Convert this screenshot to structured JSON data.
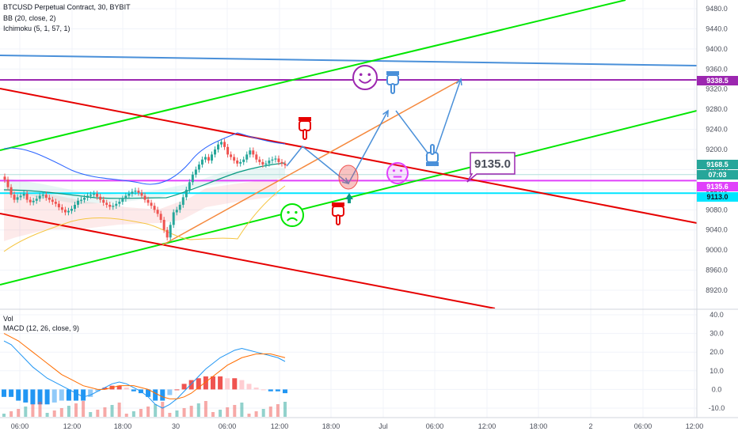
{
  "header": {
    "symbol": "BTCUSD Perpetual Contract, 30, BYBIT",
    "indicator_bb": "BB (20, close, 2)",
    "indicator_ichimoku": "Ichimoku (5, 1, 57, 1)",
    "indicator_vol": "Vol",
    "indicator_macd": "MACD (12, 26, close, 9)"
  },
  "price_axis": {
    "ticks": [
      "9480.0",
      "9440.0",
      "9400.0",
      "9360.0",
      "9320.0",
      "9280.0",
      "9240.0",
      "9200.0",
      "9160.0",
      "9120.0",
      "9080.0",
      "9040.0",
      "9000.0",
      "8960.0",
      "8920.0"
    ],
    "tags": [
      {
        "label": "9338.5",
        "value": 9338.5,
        "color": "#9c27b0",
        "text_color": "#ffffff"
      },
      {
        "label": "9168.5",
        "value": 9168.5,
        "color": "#26a69a",
        "text_color": "#ffffff"
      },
      {
        "label": "07:03",
        "value": 9155.5,
        "color": "#26a69a",
        "text_color": "#ffffff"
      },
      {
        "label": "9135.6",
        "value": 9138,
        "color": "#e040fb",
        "text_color": "#ffffff"
      },
      {
        "label": "9113.0",
        "value": 9113.0,
        "color": "#00e5ff",
        "text_color": "#131722"
      }
    ]
  },
  "macd_axis": {
    "ticks": [
      "40.0",
      "30.0",
      "20.0",
      "10.0",
      "0.0",
      "-10.0"
    ]
  },
  "time_axis": {
    "labels": [
      "06:00",
      "12:00",
      "18:00",
      "30",
      "06:00",
      "12:00",
      "18:00",
      "Jul",
      "06:00",
      "12:00",
      "18:00",
      "2",
      "06:00",
      "12:00"
    ]
  },
  "annotation": {
    "price_label": "9135.0"
  },
  "colors": {
    "up": "#26a69a",
    "down": "#ef5350",
    "green_trend": "#00e600",
    "red_trend": "#e60000",
    "blue_line": "#4a90d9",
    "purple_line": "#9c27b0",
    "magenta_line": "#e040fb",
    "cyan_line": "#00e5ff",
    "orange_line": "#f5883c",
    "bb": "#2962ff"
  },
  "chart_data": {
    "type": "candlestick",
    "symbol": "BTCUSD Perpetual Contract",
    "interval": "30",
    "exchange": "BYBIT",
    "price_range": [
      8900,
      9500
    ],
    "horizontal_levels": [
      9338.5,
      9135.0,
      9113.0
    ],
    "last_price": 9168.5,
    "annotated_price": 9135.0,
    "time_labels": [
      "06:00",
      "12:00",
      "18:00",
      "30",
      "06:00",
      "12:00",
      "18:00",
      "Jul",
      "06:00",
      "12:00",
      "18:00",
      "2",
      "06:00",
      "12:00"
    ],
    "candles_close": [
      9140,
      9125,
      9110,
      9100,
      9105,
      9108,
      9112,
      9100,
      9095,
      9098,
      9102,
      9108,
      9110,
      9104,
      9100,
      9096,
      9092,
      9085,
      9080,
      9075,
      9078,
      9082,
      9090,
      9098,
      9100,
      9104,
      9108,
      9110,
      9112,
      9106,
      9100,
      9094,
      9090,
      9086,
      9088,
      9092,
      9096,
      9102,
      9108,
      9112,
      9116,
      9118,
      9114,
      9108,
      9100,
      9094,
      9088,
      9080,
      9072,
      9060,
      9040,
      9025,
      9050,
      9075,
      9080,
      9090,
      9105,
      9120,
      9135,
      9150,
      9160,
      9170,
      9180,
      9185,
      9178,
      9190,
      9200,
      9210,
      9215,
      9205,
      9190,
      9185,
      9178,
      9172,
      9175,
      9180,
      9190,
      9198,
      9190,
      9180,
      9175,
      9170,
      9172,
      9178,
      9180,
      9182,
      9175,
      9172,
      9168.5
    ],
    "macd_range": [
      -15,
      42
    ],
    "macd_line_approx": [
      26,
      24,
      20,
      16,
      12,
      9,
      6,
      4,
      2,
      0,
      -2,
      -4,
      -3,
      -1,
      1,
      3,
      4,
      3,
      1,
      -1,
      -4,
      -8,
      -10,
      -8,
      -5,
      -1,
      3,
      7,
      11,
      14,
      17,
      19,
      21,
      22,
      21,
      20,
      19,
      18,
      17,
      15
    ],
    "signal_line_approx": [
      30,
      28,
      26,
      23,
      20,
      17,
      14,
      11,
      8,
      6,
      4,
      2,
      1,
      0,
      0,
      1,
      2,
      2,
      2,
      1,
      0,
      -2,
      -4,
      -5,
      -5,
      -4,
      -2,
      1,
      4,
      7,
      10,
      13,
      15,
      17,
      18,
      19,
      19,
      19,
      18,
      17
    ]
  }
}
